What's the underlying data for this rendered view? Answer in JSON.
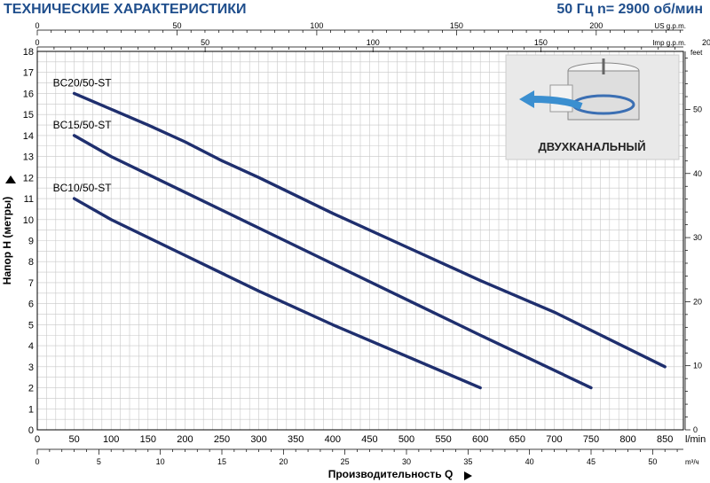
{
  "header": {
    "title": "ТЕХНИЧЕСКИЕ ХАРАКТЕРИСТИКИ",
    "subtitle": "50 Гц  n= 2900 об/мин"
  },
  "inset": {
    "caption": "ДВУХКАНАЛЬНЫЙ"
  },
  "colors": {
    "line": "#1f2f6e",
    "title": "#1f4e8c",
    "grid": "#c8c8c8",
    "inset_bg": "#e9e9e9"
  },
  "chart_data": {
    "type": "line",
    "title": "ТЕХНИЧЕСКИЕ ХАРАКТЕРИСТИКИ",
    "xlabel": "Производительность  Q",
    "ylabel": "Напор H (метры)",
    "xlim": [
      0,
      875
    ],
    "ylim": [
      0,
      18
    ],
    "grid": true,
    "x_unit": "l/min",
    "y_ticks": [
      0,
      1,
      2,
      3,
      4,
      5,
      6,
      7,
      8,
      9,
      10,
      11,
      12,
      13,
      14,
      15,
      16,
      17,
      18
    ],
    "x_ticks": [
      0,
      50,
      100,
      150,
      200,
      250,
      300,
      350,
      400,
      450,
      500,
      550,
      600,
      650,
      700,
      750,
      800,
      850
    ],
    "secondary_axes": {
      "us_gpm": {
        "label": "US g.p.m.",
        "ticks": [
          0,
          50,
          100,
          150,
          200
        ]
      },
      "imp_gpm": {
        "label": "Imp g.p.m.",
        "ticks": [
          0,
          50,
          100,
          150,
          200
        ]
      },
      "m3h": {
        "label": "m³/ч",
        "ticks": [
          0,
          5,
          10,
          15,
          20,
          25,
          30,
          35,
          40,
          45,
          50
        ]
      },
      "feet": {
        "label": "feet",
        "ticks": [
          0,
          10,
          20,
          30,
          40,
          50
        ]
      }
    },
    "series": [
      {
        "name": "BC20/50-ST",
        "x": [
          50,
          150,
          200,
          250,
          300,
          400,
          500,
          600,
          700,
          850
        ],
        "y": [
          16,
          14.5,
          13.7,
          12.8,
          12,
          10.3,
          8.7,
          7.1,
          5.6,
          3
        ]
      },
      {
        "name": "BC15/50-ST",
        "x": [
          50,
          100,
          200,
          300,
          400,
          500,
          600,
          750
        ],
        "y": [
          14,
          13,
          11.3,
          9.6,
          7.9,
          6.2,
          4.5,
          2
        ]
      },
      {
        "name": "BC10/50-ST",
        "x": [
          50,
          100,
          200,
          300,
          400,
          500,
          600
        ],
        "y": [
          11,
          10,
          8.3,
          6.6,
          5,
          3.5,
          2
        ]
      }
    ]
  }
}
